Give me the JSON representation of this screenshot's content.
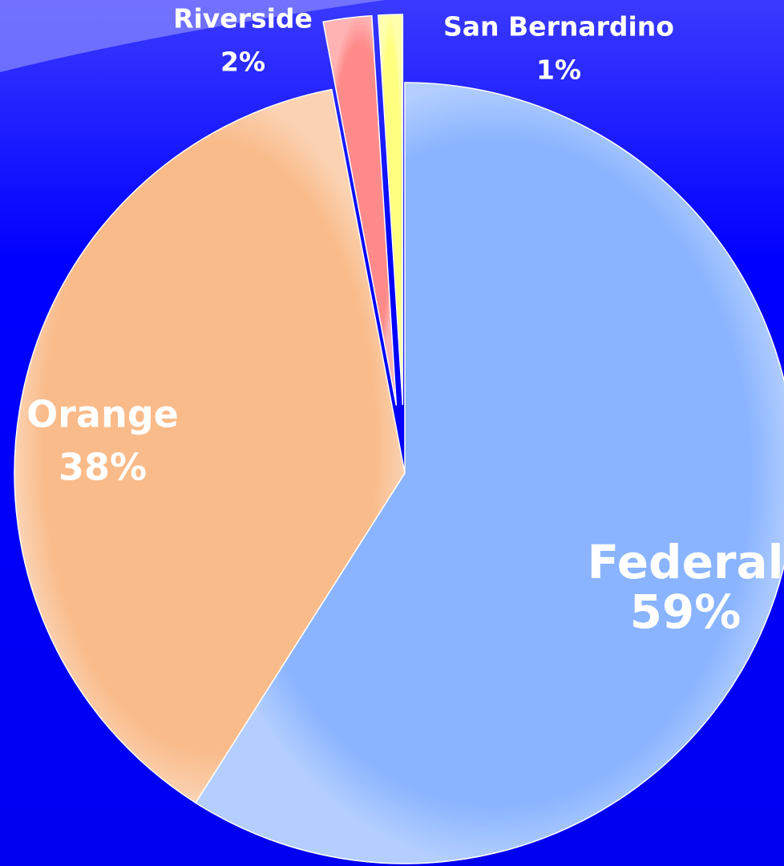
{
  "chart_data": {
    "type": "pie",
    "categories": [
      "Federal",
      "Orange",
      "Riverside",
      "San Bernardino"
    ],
    "values": [
      59,
      38,
      2,
      1
    ],
    "value_labels": [
      "59%",
      "38%",
      "2%",
      "1%"
    ],
    "colors": [
      "#8ab4ff",
      "#f9bb8a",
      "#ff8a8a",
      "#ffff80"
    ]
  }
}
